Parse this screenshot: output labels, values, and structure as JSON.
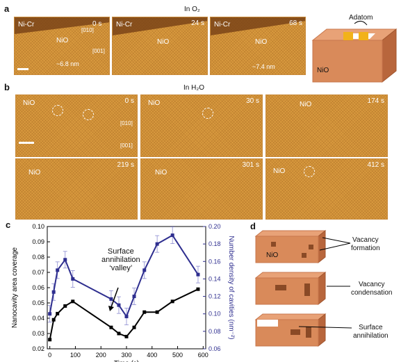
{
  "panel_a": {
    "label": "a",
    "condition_title": "In O₂",
    "frames": [
      {
        "time": "0 s",
        "labels": [
          "Ni-Cr",
          "NiO"
        ],
        "dirs": [
          "[010]",
          "[001]"
        ],
        "measure": "~6.8 nm"
      },
      {
        "time": "24 s",
        "labels": [
          "Ni-Cr",
          "NiO"
        ]
      },
      {
        "time": "68 s",
        "labels": [
          "Ni-Cr",
          "NiO"
        ],
        "measure": "~7.4 nm"
      }
    ],
    "schematic": {
      "adatom": "Adatom",
      "nio": "NiO"
    }
  },
  "panel_b": {
    "label": "b",
    "condition_title": "In H₂O",
    "frames": [
      {
        "time": "0 s",
        "label": "NiO",
        "dirs": [
          "[010]",
          "[001]"
        ]
      },
      {
        "time": "30 s",
        "label": "NiO"
      },
      {
        "time": "174 s",
        "label": "NiO"
      },
      {
        "time": "219 s",
        "label": "NiO"
      },
      {
        "time": "301 s",
        "label": "NiO"
      },
      {
        "time": "412 s",
        "label": "NiO"
      }
    ]
  },
  "panel_c": {
    "label": "c",
    "annotation": [
      "Surface",
      "annihilation",
      "‘valley’"
    ],
    "xlabel": "Time (s)"
  },
  "panel_d": {
    "label": "d",
    "nio": "NiO",
    "steps": [
      {
        "lines": [
          "Vacancy",
          "formation"
        ]
      },
      {
        "lines": [
          "Vacancy",
          "condensation"
        ]
      },
      {
        "lines": [
          "Surface",
          "annihilation"
        ]
      }
    ]
  },
  "chart_data": {
    "type": "line",
    "x": [
      0,
      15,
      30,
      60,
      90,
      240,
      270,
      300,
      330,
      370,
      420,
      480,
      580
    ],
    "series": [
      {
        "name": "Nanocavity area coverage",
        "axis": "left",
        "color": "#000000",
        "values": [
          0.026,
          0.039,
          0.043,
          0.048,
          0.051,
          0.034,
          0.03,
          0.028,
          0.034,
          0.044,
          0.044,
          0.051,
          0.059
        ]
      },
      {
        "name": "Number density of cavities",
        "axis": "right",
        "color": "#2e2e8f",
        "values": [
          0.1,
          0.125,
          0.15,
          0.162,
          0.14,
          0.117,
          0.11,
          0.097,
          0.12,
          0.15,
          0.18,
          0.19,
          0.145
        ]
      }
    ],
    "ylabel_left": "Nanocavity area coverage",
    "ylabel_right": "Number density of cavities (nm⁻²)",
    "xlabel": "Time (s)",
    "xlim": [
      -10,
      610
    ],
    "xticks": [
      0,
      100,
      200,
      300,
      400,
      500,
      600
    ],
    "ylim_left": [
      0.02,
      0.1
    ],
    "yticks_left": [
      "0.02",
      "0.03",
      "0.04",
      "0.05",
      "0.06",
      "0.07",
      "0.08",
      "0.09",
      "0.10"
    ],
    "ylim_right": [
      0.06,
      0.2
    ],
    "yticks_right": [
      "0.06",
      "0.08",
      "0.10",
      "0.12",
      "0.14",
      "0.16",
      "0.18",
      "0.20"
    ]
  }
}
